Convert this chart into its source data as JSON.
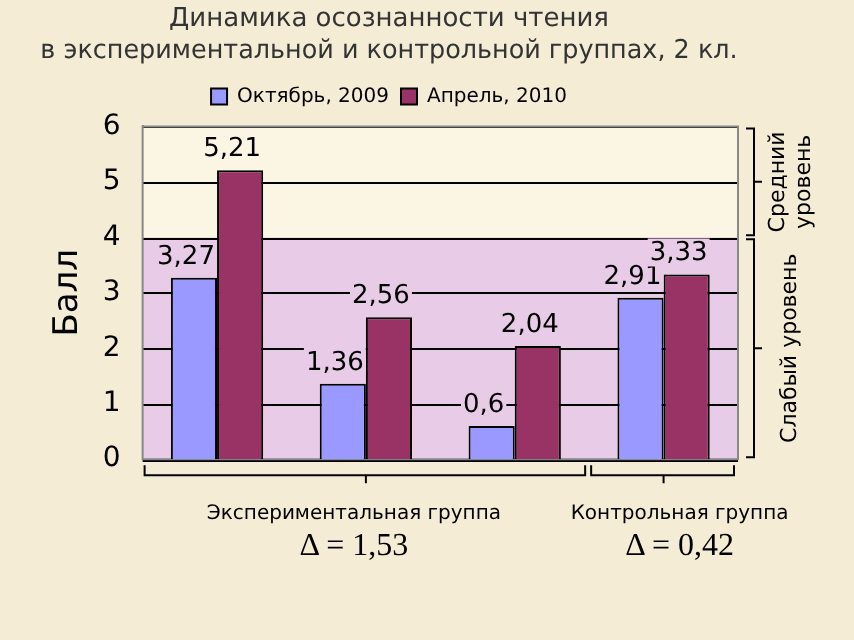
{
  "chart_data": {
    "type": "bar",
    "title": "Динамика осознанности чтения\nв экспериментальной и контрольной группах, 2 кл.",
    "ylabel": "Балл",
    "categories": [
      null,
      null,
      null,
      null
    ],
    "series": [
      {
        "name": "Октябрь, 2009",
        "color": "#9999ff",
        "values": [
          3.27,
          1.36,
          0.6,
          2.91
        ],
        "value_labels": [
          "3,27",
          "1,36",
          "0,6",
          "2,91"
        ]
      },
      {
        "name": "Апрель, 2010",
        "color": "#993366",
        "values": [
          5.21,
          2.56,
          2.04,
          3.33
        ],
        "value_labels": [
          "5,21",
          "2,56",
          "2,04",
          "3,33"
        ]
      }
    ],
    "ylim": [
      0,
      6
    ],
    "yticks": [
      0,
      1,
      2,
      3,
      4,
      5,
      6
    ],
    "grid": "y",
    "legend": "top",
    "bands": [
      {
        "axis": "y",
        "from": 0,
        "to": 4,
        "label": "Слабый уровень",
        "color": "#e8cbe6"
      },
      {
        "axis": "y",
        "from": 4,
        "to": 6,
        "label": "Средний уровень",
        "color": "#fbf5e3"
      }
    ],
    "annotations": [
      "Экспериментальная группа",
      "Δ = 1,53",
      "Контрольная группа",
      "Δ = 0,42"
    ]
  }
}
